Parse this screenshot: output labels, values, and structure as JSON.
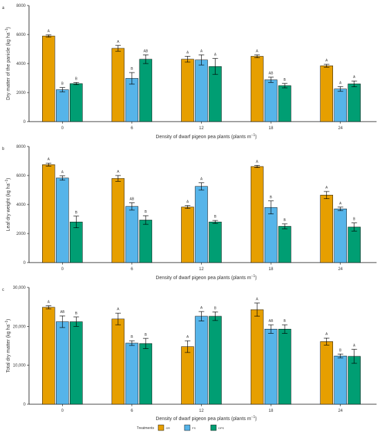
{
  "colors": {
    "GR": "#E69F00",
    "FS": "#56B4E9",
    "DPS": "#009E73"
  },
  "legend": {
    "title": "Treatments",
    "items": [
      {
        "label": "GR",
        "color": "#E69F00"
      },
      {
        "label": "FS",
        "color": "#56B4E9"
      },
      {
        "label": "DPS",
        "color": "#009E73"
      }
    ]
  },
  "chart_data": [
    {
      "type": "bar",
      "panel_label": "a",
      "xlabel": "Density of dwarf pigeon pea plants (plants m",
      "xlabel_sup": "−1",
      "xlabel_end": ")",
      "ylabel": "Dry matter of the panicle (kg ha",
      "ylabel_sup": "−1",
      "ylabel_end": ")",
      "categories": [
        "0",
        "6",
        "12",
        "18",
        "24"
      ],
      "ylim": [
        0,
        8000
      ],
      "yticks": [
        0,
        2000,
        4000,
        6000,
        8000
      ],
      "ytick_labels": [
        "0",
        "2000",
        "4000",
        "6000",
        "8000"
      ],
      "series": [
        {
          "name": "GR",
          "values": [
            5900,
            5050,
            4300,
            4500,
            3850
          ],
          "errors": [
            80,
            200,
            200,
            100,
            100
          ],
          "letters": [
            "A",
            "A",
            "A",
            "A",
            "A"
          ]
        },
        {
          "name": "FS",
          "values": [
            2200,
            2980,
            4250,
            2880,
            2250
          ],
          "errors": [
            150,
            400,
            350,
            180,
            160
          ],
          "letters": [
            "B",
            "B",
            "A",
            "AB",
            "A"
          ]
        },
        {
          "name": "DPS",
          "values": [
            2620,
            4300,
            3800,
            2480,
            2600
          ],
          "errors": [
            80,
            300,
            550,
            150,
            200
          ],
          "letters": [
            "B",
            "AB",
            "A",
            "B",
            "A"
          ]
        }
      ]
    },
    {
      "type": "bar",
      "panel_label": "b",
      "xlabel": "Density of dwarf pigeon pea plants (plants m",
      "xlabel_sup": "−1",
      "xlabel_end": ")",
      "ylabel": "Leaf dry weight (kg ha",
      "ylabel_sup": "−1",
      "ylabel_end": ")",
      "categories": [
        "0",
        "6",
        "12",
        "18",
        "24"
      ],
      "ylim": [
        0,
        8000
      ],
      "yticks": [
        0,
        2000,
        4000,
        6000,
        8000
      ],
      "ytick_labels": [
        "0",
        "2000",
        "4000",
        "6000",
        "8000"
      ],
      "series": [
        {
          "name": "GR",
          "values": [
            6750,
            5800,
            3830,
            6620,
            4650
          ],
          "errors": [
            100,
            200,
            100,
            80,
            250
          ],
          "letters": [
            "A",
            "A",
            "A",
            "A",
            "A"
          ]
        },
        {
          "name": "FS",
          "values": [
            5830,
            3870,
            5250,
            3800,
            3700
          ],
          "errors": [
            150,
            250,
            250,
            450,
            120
          ],
          "letters": [
            "A",
            "AB",
            "A",
            "B",
            "A"
          ]
        },
        {
          "name": "DPS",
          "values": [
            2800,
            2930,
            2800,
            2500,
            2450
          ],
          "errors": [
            400,
            300,
            100,
            170,
            280
          ],
          "letters": [
            "B",
            "B",
            "B",
            "B",
            "B"
          ]
        }
      ]
    },
    {
      "type": "bar",
      "panel_label": "c",
      "xlabel": "Density of dwarf pigeon pea plants (plants m",
      "xlabel_sup": "−1",
      "xlabel_end": ")",
      "ylabel": "Total dry matter (kg ha",
      "ylabel_sup": "−1",
      "ylabel_end": ")",
      "categories": [
        "0",
        "6",
        "12",
        "18",
        "24"
      ],
      "ylim": [
        0,
        30000
      ],
      "yticks": [
        0,
        10000,
        20000,
        30000
      ],
      "ytick_labels": [
        "0",
        "10,000",
        "20,000",
        "30,000"
      ],
      "series": [
        {
          "name": "GR",
          "values": [
            24900,
            21900,
            14800,
            24300,
            16100
          ],
          "errors": [
            400,
            1500,
            1500,
            1700,
            900
          ],
          "letters": [
            "A",
            "A",
            "A",
            "A",
            "A"
          ]
        },
        {
          "name": "FS",
          "values": [
            21200,
            15700,
            22600,
            19300,
            12400
          ],
          "errors": [
            1500,
            600,
            1200,
            1100,
            500
          ],
          "letters": [
            "AB",
            "B",
            "A",
            "AB",
            "B"
          ]
        },
        {
          "name": "DPS",
          "values": [
            21200,
            15600,
            22600,
            19300,
            12300
          ],
          "errors": [
            1200,
            1300,
            1100,
            1100,
            1800
          ],
          "letters": [
            "B",
            "B",
            "B",
            "B",
            "A"
          ]
        }
      ]
    }
  ]
}
